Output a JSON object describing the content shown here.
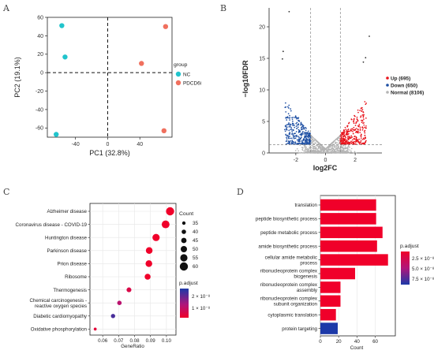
{
  "panels": {
    "A": "A",
    "B": "B",
    "C": "C",
    "D": "D"
  },
  "chart_data": [
    {
      "id": "pca",
      "type": "scatter",
      "xlabel": "PC1 (32.8%)",
      "ylabel": "PC2 (19.1%)",
      "xlim": [
        -75,
        80
      ],
      "ylim": [
        -70,
        60
      ],
      "xticks": [
        -40,
        0,
        40
      ],
      "yticks": [
        -60,
        -40,
        -20,
        0,
        20,
        40,
        60
      ],
      "legend_title": "group",
      "series": [
        {
          "name": "NC",
          "color": "#21c4cc",
          "points": [
            [
              -57,
              51
            ],
            [
              -53,
              17
            ],
            [
              -64,
              -67
            ]
          ]
        },
        {
          "name": "PDCD6i",
          "color": "#f0705e",
          "points": [
            [
              72,
              50
            ],
            [
              42,
              10
            ],
            [
              70,
              -63
            ]
          ]
        }
      ]
    },
    {
      "id": "volcano",
      "type": "scatter",
      "xlabel": "log2FC",
      "ylabel": "−log10FDR",
      "xlim": [
        -3.8,
        3.8
      ],
      "ylim": [
        0,
        23
      ],
      "xticks": [
        -2,
        0,
        2
      ],
      "yticks": [
        0,
        5,
        10,
        15,
        20
      ],
      "thresholds": {
        "log2fc": [
          -1,
          1
        ],
        "neg_log10_fdr": 1.3
      },
      "legend": [
        {
          "label": "Up (695)",
          "color": "#e8141c"
        },
        {
          "label": "Down (650)",
          "color": "#1e4fa3"
        },
        {
          "label": "Normal (8106)",
          "color": "#b4b4b4"
        }
      ],
      "highlight_points": [
        [
          -2.45,
          22.4
        ],
        [
          -2.85,
          16.1
        ],
        [
          2.95,
          18.5
        ],
        [
          2.7,
          15.1
        ],
        [
          -2.9,
          14.9
        ],
        [
          2.55,
          14.4
        ]
      ]
    },
    {
      "id": "kegg-dotplot",
      "type": "scatter",
      "xlabel": "GeneRatio",
      "xlim": [
        0.052,
        0.106
      ],
      "xticks": [
        0.06,
        0.07,
        0.08,
        0.09,
        0.1
      ],
      "xtick_labels": [
        "0.06",
        "0.07",
        "0.08",
        "0.09",
        "0.10"
      ],
      "terms": [
        {
          "label": "Alzheimer disease",
          "gene_ratio": 0.1023,
          "count": 60,
          "padj": 1e-13
        },
        {
          "label": "Coronavirus disease - COVID-19",
          "gene_ratio": 0.0995,
          "count": 58,
          "padj": 1e-13
        },
        {
          "label": "Huntington disease",
          "gene_ratio": 0.0935,
          "count": 55,
          "padj": 1e-13
        },
        {
          "label": "Parkinson disease",
          "gene_ratio": 0.0892,
          "count": 52,
          "padj": 1e-13
        },
        {
          "label": "Prion disease",
          "gene_ratio": 0.089,
          "count": 52,
          "padj": 1e-13
        },
        {
          "label": "Ribosome",
          "gene_ratio": 0.0882,
          "count": 48,
          "padj": 1e-13
        },
        {
          "label": "Thermogenesis",
          "gene_ratio": 0.0765,
          "count": 42,
          "padj": 6e-09
        },
        {
          "label": "Chemical carcinogenesis -\nreactive oxygen species",
          "gene_ratio": 0.0705,
          "count": 40,
          "padj": 1.4e-08
        },
        {
          "label": "Diabetic cardiomyopathy",
          "gene_ratio": 0.0665,
          "count": 39,
          "padj": 2.6e-08
        },
        {
          "label": "Oxidative phosphorylation",
          "gene_ratio": 0.0553,
          "count": 32,
          "padj": 3e-09
        }
      ],
      "size_legend": {
        "title": "Count",
        "values": [
          35,
          40,
          45,
          50,
          55,
          60
        ]
      },
      "color_legend": {
        "title": "p.adjust",
        "labels": [
          "2 × 10⁻⁸",
          "1 × 10⁻⁸"
        ],
        "low_color": "#f0002a",
        "high_color": "#1c39a8"
      }
    },
    {
      "id": "go-barplot",
      "type": "bar",
      "xlabel": "Count",
      "xlim": [
        0,
        82
      ],
      "xticks": [
        0,
        20,
        40,
        60
      ],
      "terms": [
        {
          "label": "translation",
          "count": 61,
          "padj": 1e-13
        },
        {
          "label": "peptide biosynthetic process",
          "count": 61,
          "padj": 1e-13
        },
        {
          "label": "peptide metabolic process",
          "count": 68,
          "padj": 1e-13
        },
        {
          "label": "amide biosynthetic process",
          "count": 62,
          "padj": 1e-13
        },
        {
          "label": "cellular amide metabolic\nprocess",
          "count": 74,
          "padj": 1e-13
        },
        {
          "label": "ribonucleoprotein complex\nbiogenesis",
          "count": 38,
          "padj": 1e-13
        },
        {
          "label": "ribonucleoprotein complex\nassembly",
          "count": 22,
          "padj": 1e-13
        },
        {
          "label": "ribonucleoprotein complex\nsubunit organization",
          "count": 22,
          "padj": 1e-13
        },
        {
          "label": "cytoplasmic translation",
          "count": 17,
          "padj": 1e-13
        },
        {
          "label": "protein targeting",
          "count": 19,
          "padj": 8.5e-08
        }
      ],
      "color_legend": {
        "title": "p.adjust",
        "labels": [
          "2.5 × 10⁻⁸",
          "5.0 × 10⁻⁸",
          "7.5 × 10⁻⁸"
        ],
        "low_color": "#f0002a",
        "high_color": "#1c39a8"
      }
    }
  ]
}
